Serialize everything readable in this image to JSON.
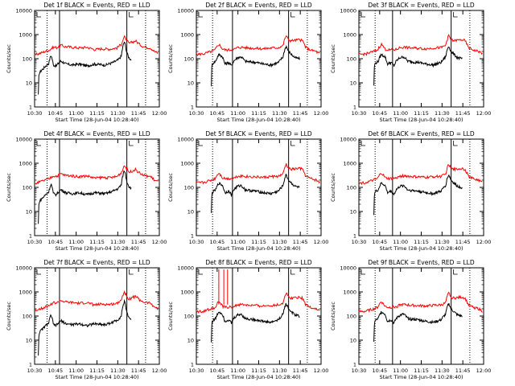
{
  "figure": {
    "window_title": "",
    "layout": "3x3"
  },
  "colors": {
    "events": "#000000",
    "lld": "#ff0000",
    "frame": "#000000"
  },
  "chart_data": [
    {
      "type": "line",
      "title": "Det 1f BLACK = Events, RED = LLD",
      "xlabel": "Start Time (28-Jun-04 10:28:40)",
      "ylabel": "Counts/sec",
      "xticks": [
        "10:30",
        "10:45",
        "11:00",
        "11:15",
        "11:30",
        "11:45",
        "12:00"
      ],
      "yticks": [
        "1",
        "10",
        "100",
        "1000",
        "10000"
      ],
      "xlim": [
        10.5,
        12.167
      ],
      "ylim": [
        1,
        10000
      ],
      "yscale": "log",
      "dotted_lines": [
        10.667,
        11.983
      ],
      "solid_lines": [
        10.833,
        11.733
      ],
      "series": [
        {
          "name": "Events",
          "color": "#000000",
          "start": 10.55,
          "shape": "A",
          "scale": 1.0
        },
        {
          "name": "LLD",
          "color": "#ff0000",
          "start": 10.5,
          "shape": "A",
          "scale": 1.0
        }
      ]
    },
    {
      "type": "line",
      "title": "Det 2f BLACK = Events, RED = LLD",
      "xlabel": "Start Time (28-Jun-04 10:28:40)",
      "ylabel": "Counts/sec",
      "xticks": [
        "10:30",
        "10:45",
        "11:00",
        "11:15",
        "11:30",
        "11:45",
        "12:00"
      ],
      "yticks": [
        "1",
        "10",
        "100",
        "1000",
        "10000"
      ],
      "xlim": [
        10.5,
        12.167
      ],
      "ylim": [
        1,
        10000
      ],
      "yscale": "log",
      "dotted_lines": [
        10.717,
        11.983
      ],
      "solid_lines": [
        10.983,
        11.733
      ],
      "series": [
        {
          "name": "Events",
          "color": "#000000",
          "start": 10.7,
          "shape": "B",
          "scale": 1.0
        },
        {
          "name": "LLD",
          "color": "#ff0000",
          "start": 10.5,
          "shape": "B",
          "scale": 1.0
        }
      ]
    },
    {
      "type": "line",
      "title": "Det 3f BLACK = Events, RED = LLD",
      "xlabel": "Start Time (28-Jun-04 10:28:40)",
      "ylabel": "Counts/sec",
      "xticks": [
        "10:30",
        "10:45",
        "11:00",
        "11:15",
        "11:30",
        "11:45",
        "12:00"
      ],
      "yticks": [
        "1",
        "10",
        "100",
        "1000",
        "10000"
      ],
      "xlim": [
        10.5,
        12.167
      ],
      "ylim": [
        1,
        10000
      ],
      "yscale": "log",
      "dotted_lines": [
        10.717,
        11.983
      ],
      "solid_lines": [
        10.95,
        11.733
      ],
      "series": [
        {
          "name": "Events",
          "color": "#000000",
          "start": 10.7,
          "shape": "B",
          "scale": 1.0
        },
        {
          "name": "LLD",
          "color": "#ff0000",
          "start": 10.5,
          "shape": "B",
          "scale": 1.0
        }
      ]
    },
    {
      "type": "line",
      "title": "Det 4f BLACK = Events, RED = LLD",
      "xlabel": "Start Time (28-Jun-04 10:28:40)",
      "ylabel": "Counts/sec",
      "xticks": [
        "10:30",
        "10:45",
        "11:00",
        "11:15",
        "11:30",
        "11:45",
        "12:00"
      ],
      "yticks": [
        "1",
        "10",
        "100",
        "1000",
        "10000"
      ],
      "xlim": [
        10.5,
        12.167
      ],
      "ylim": [
        1,
        10000
      ],
      "yscale": "log",
      "dotted_lines": [
        10.667,
        11.983
      ],
      "solid_lines": [
        10.833,
        11.733
      ],
      "series": [
        {
          "name": "Events",
          "color": "#000000",
          "start": 10.55,
          "shape": "A",
          "scale": 1.0
        },
        {
          "name": "LLD",
          "color": "#ff0000",
          "start": 10.5,
          "shape": "A",
          "scale": 1.0
        }
      ]
    },
    {
      "type": "line",
      "title": "Det 5f BLACK = Events, RED = LLD",
      "xlabel": "Start Time (28-Jun-04 10:28:40)",
      "ylabel": "Counts/sec",
      "xticks": [
        "10:30",
        "10:45",
        "11:00",
        "11:15",
        "11:30",
        "11:45",
        "12:00"
      ],
      "yticks": [
        "1",
        "10",
        "100",
        "1000",
        "10000"
      ],
      "xlim": [
        10.5,
        12.167
      ],
      "ylim": [
        1,
        10000
      ],
      "yscale": "log",
      "dotted_lines": [
        10.717,
        11.983
      ],
      "solid_lines": [
        10.983,
        11.733
      ],
      "series": [
        {
          "name": "Events",
          "color": "#000000",
          "start": 10.7,
          "shape": "B",
          "scale": 1.0
        },
        {
          "name": "LLD",
          "color": "#ff0000",
          "start": 10.5,
          "shape": "B",
          "scale": 1.0
        }
      ]
    },
    {
      "type": "line",
      "title": "Det 6f BLACK = Events, RED = LLD",
      "xlabel": "Start Time (28-Jun-04 10:28:40)",
      "ylabel": "Counts/sec",
      "xticks": [
        "10:30",
        "10:45",
        "11:00",
        "11:15",
        "11:30",
        "11:45",
        "12:00"
      ],
      "yticks": [
        "1",
        "10",
        "100",
        "1000",
        "10000"
      ],
      "xlim": [
        10.5,
        12.167
      ],
      "ylim": [
        1,
        10000
      ],
      "yscale": "log",
      "dotted_lines": [
        10.717,
        11.983
      ],
      "solid_lines": [
        10.95,
        11.733
      ],
      "series": [
        {
          "name": "Events",
          "color": "#000000",
          "start": 10.7,
          "shape": "B",
          "scale": 1.0
        },
        {
          "name": "LLD",
          "color": "#ff0000",
          "start": 10.5,
          "shape": "B",
          "scale": 1.0
        }
      ]
    },
    {
      "type": "line",
      "title": "Det 7f BLACK = Events, RED = LLD",
      "xlabel": "Start Time (28-Jun-04 10:28:40)",
      "ylabel": "Counts/sec",
      "xticks": [
        "10:30",
        "10:45",
        "11:00",
        "11:15",
        "11:30",
        "11:45",
        "12:00"
      ],
      "yticks": [
        "1",
        "10",
        "100",
        "1000",
        "10000"
      ],
      "xlim": [
        10.5,
        12.167
      ],
      "ylim": [
        1,
        10000
      ],
      "yscale": "log",
      "dotted_lines": [
        10.667,
        11.983
      ],
      "solid_lines": [
        10.833,
        11.733
      ],
      "series": [
        {
          "name": "Events",
          "color": "#000000",
          "start": 10.55,
          "shape": "A",
          "scale": 0.8
        },
        {
          "name": "LLD",
          "color": "#ff0000",
          "start": 10.5,
          "shape": "A",
          "scale": 1.2
        }
      ]
    },
    {
      "type": "line",
      "title": "Det 8f BLACK = Events, RED = LLD",
      "xlabel": "Start Time (28-Jun-04 10:28:40)",
      "ylabel": "Counts/sec",
      "xticks": [
        "10:30",
        "10:45",
        "11:00",
        "11:15",
        "11:30",
        "11:45",
        "12:00"
      ],
      "yticks": [
        "1",
        "10",
        "100",
        "1000",
        "10000"
      ],
      "xlim": [
        10.5,
        12.167
      ],
      "ylim": [
        1,
        10000
      ],
      "yscale": "log",
      "dotted_lines": [
        10.717,
        11.983
      ],
      "solid_lines": [
        10.983,
        11.733
      ],
      "red_spikes": [
        10.8,
        10.867,
        10.917
      ],
      "series": [
        {
          "name": "Events",
          "color": "#000000",
          "start": 10.7,
          "shape": "B",
          "scale": 1.0
        },
        {
          "name": "LLD",
          "color": "#ff0000",
          "start": 10.5,
          "shape": "B",
          "scale": 1.0
        }
      ]
    },
    {
      "type": "line",
      "title": "Det 9f BLACK = Events, RED = LLD",
      "xlabel": "Start Time (28-Jun-04 10:28:40)",
      "ylabel": "Counts/sec",
      "xticks": [
        "10:30",
        "10:45",
        "11:00",
        "11:15",
        "11:30",
        "11:45",
        "12:00"
      ],
      "yticks": [
        "1",
        "10",
        "100",
        "1000",
        "10000"
      ],
      "xlim": [
        10.5,
        12.167
      ],
      "ylim": [
        1,
        10000
      ],
      "yscale": "log",
      "dotted_lines": [
        10.717,
        11.983
      ],
      "solid_lines": [
        10.95,
        11.733
      ],
      "series": [
        {
          "name": "Events",
          "color": "#000000",
          "start": 10.7,
          "shape": "B",
          "scale": 1.0
        },
        {
          "name": "LLD",
          "color": "#ff0000",
          "start": 10.5,
          "shape": "B",
          "scale": 1.0
        }
      ]
    }
  ]
}
